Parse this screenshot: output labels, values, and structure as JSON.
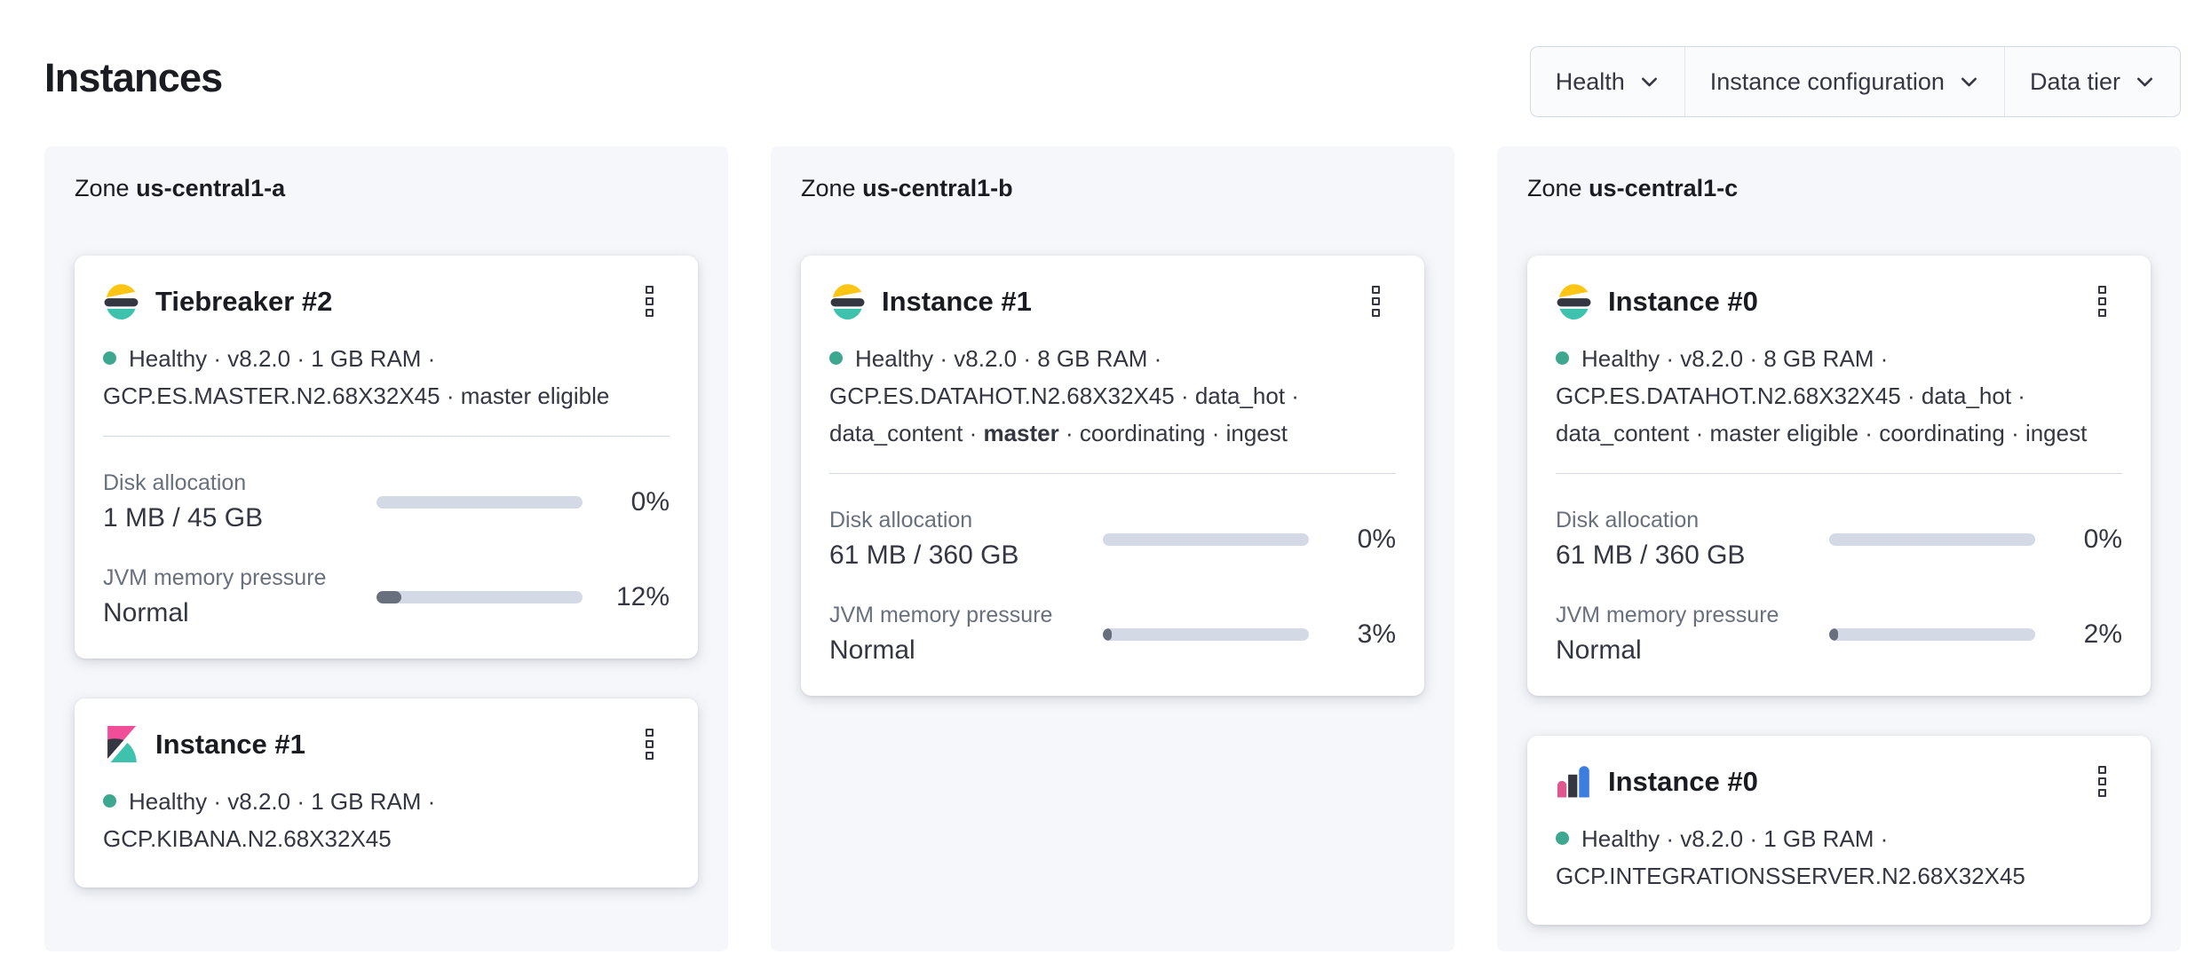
{
  "page": {
    "title": "Instances"
  },
  "labels": {
    "zone_prefix": "Zone"
  },
  "filters": [
    {
      "label": "Health"
    },
    {
      "label": "Instance configuration"
    },
    {
      "label": "Data tier"
    }
  ],
  "colors": {
    "healthy_dot": "#3ea78f",
    "elastic_yellow": "#fec514",
    "elastic_dark": "#343741",
    "elastic_teal": "#3ec2ae",
    "kibana_pink": "#f04e98",
    "integrations_pink": "#e0568f",
    "integrations_blue": "#3c7de0",
    "panel_bg": "#f5f7fa",
    "bar_track": "#d3dae6",
    "bar_fill": "#69707d",
    "text_subdued": "#69707d",
    "text_dark": "#1a1c21"
  },
  "zones": [
    {
      "name": "us-central1-a",
      "instances": [
        {
          "icon": "elasticsearch-logo",
          "title": "Tiebreaker #2",
          "status_segments": [
            {
              "text": "Healthy · v8.2.0 · 1 GB RAM · GCP.ES.MASTER.N2.68X32X45 · master eligible",
              "bold": false
            }
          ],
          "metrics": [
            {
              "label": "Disk allocation",
              "value": "1 MB / 45 GB",
              "percent": 0,
              "percent_label": "0%"
            },
            {
              "label": "JVM memory pressure",
              "value": "Normal",
              "percent": 12,
              "percent_label": "12%"
            }
          ]
        },
        {
          "icon": "kibana-logo",
          "title": "Instance #1",
          "status_segments": [
            {
              "text": "Healthy · v8.2.0 · 1 GB RAM · GCP.KIBANA.N2.68X32X45",
              "bold": false
            }
          ],
          "metrics": []
        }
      ]
    },
    {
      "name": "us-central1-b",
      "instances": [
        {
          "icon": "elasticsearch-logo",
          "title": "Instance #1",
          "status_segments": [
            {
              "text": "Healthy · v8.2.0 · 8 GB RAM · GCP.ES.DATAHOT.N2.68X32X45 · data_hot · data_content · ",
              "bold": false
            },
            {
              "text": "master",
              "bold": true
            },
            {
              "text": " · coordinating · ingest",
              "bold": false
            }
          ],
          "metrics": [
            {
              "label": "Disk allocation",
              "value": "61 MB / 360 GB",
              "percent": 0,
              "percent_label": "0%"
            },
            {
              "label": "JVM memory pressure",
              "value": "Normal",
              "percent": 3,
              "percent_label": "3%"
            }
          ]
        }
      ]
    },
    {
      "name": "us-central1-c",
      "instances": [
        {
          "icon": "elasticsearch-logo",
          "title": "Instance #0",
          "status_segments": [
            {
              "text": "Healthy · v8.2.0 · 8 GB RAM · GCP.ES.DATAHOT.N2.68X32X45 · data_hot · data_content · master eligible · coordinating · ingest",
              "bold": false
            }
          ],
          "metrics": [
            {
              "label": "Disk allocation",
              "value": "61 MB / 360 GB",
              "percent": 0,
              "percent_label": "0%"
            },
            {
              "label": "JVM memory pressure",
              "value": "Normal",
              "percent": 2,
              "percent_label": "2%"
            }
          ]
        },
        {
          "icon": "integrations-server-logo",
          "title": "Instance #0",
          "status_segments": [
            {
              "text": "Healthy · v8.2.0 · 1 GB RAM · GCP.INTEGRATIONSSERVER.N2.68X32X45",
              "bold": false
            }
          ],
          "metrics": []
        }
      ]
    }
  ]
}
